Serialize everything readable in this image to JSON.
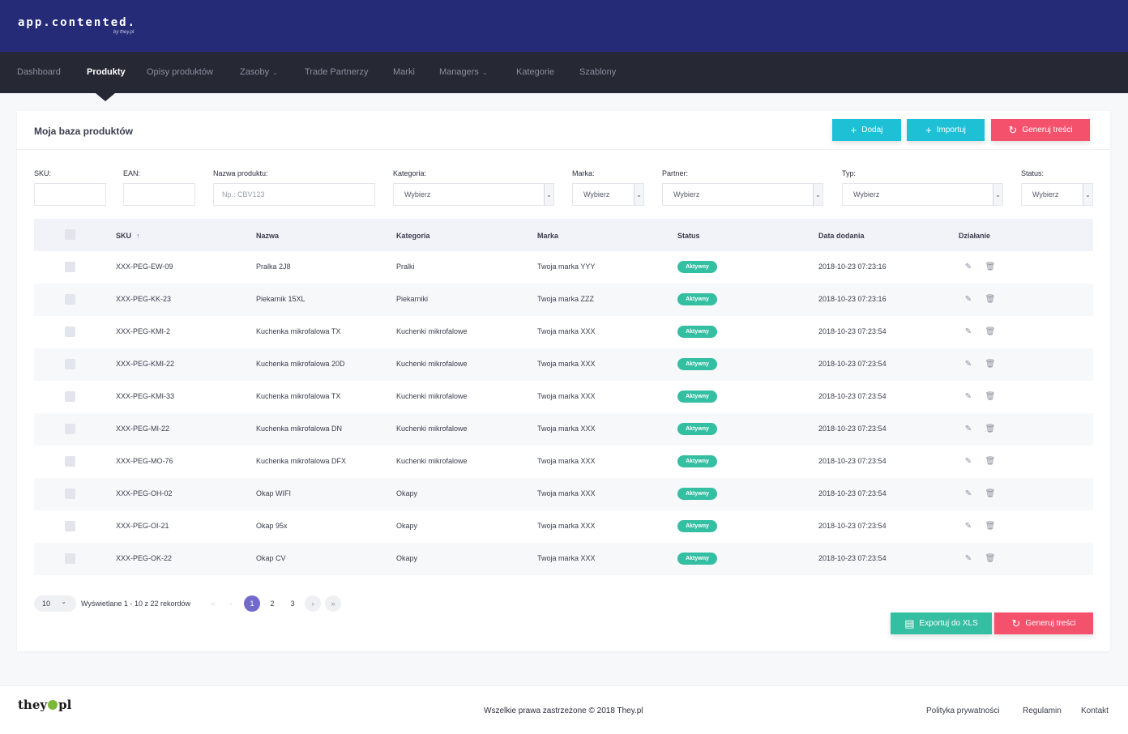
{
  "header": {
    "logo": "app.contented.",
    "logo_sub": "by they.pl"
  },
  "nav": {
    "items": [
      {
        "label": "Dashboard"
      },
      {
        "label": "Produkty",
        "active": true
      },
      {
        "label": "Opisy produktów"
      },
      {
        "label": "Zasoby",
        "dropdown": true
      },
      {
        "label": "Trade Partnerzy"
      },
      {
        "label": "Marki"
      },
      {
        "label": "Managers",
        "dropdown": true
      },
      {
        "label": "Kategorie"
      },
      {
        "label": "Szablony"
      }
    ]
  },
  "card": {
    "title": "Moja baza produktów",
    "buttons": {
      "add": "Dodaj",
      "import": "Importuj",
      "generate": "Generuj treści"
    }
  },
  "filters": {
    "sku_label": "SKU:",
    "ean_label": "EAN:",
    "name_label": "Nazwa produktu:",
    "name_placeholder": "Np.: CBV123",
    "category_label": "Kategoria:",
    "category_value": "Wybierz",
    "brand_label": "Marka:",
    "brand_value": "Wybierz",
    "partner_label": "Partner:",
    "partner_value": "Wybierz",
    "type_label": "Typ:",
    "type_value": "Wybierz",
    "status_label": "Status:",
    "status_value": "Wybierz"
  },
  "table": {
    "columns": {
      "sku": "SKU",
      "name": "Nazwa",
      "category": "Kategoria",
      "brand": "Marka",
      "status": "Status",
      "date": "Data dodania",
      "action": "Działanie"
    },
    "rows": [
      {
        "sku": "XXX-PEG-EW-09",
        "name": "Pralka 2J8",
        "category": "Pralki",
        "brand": "Twoja marka YYY",
        "status": "Aktywny",
        "date": "2018-10-23 07:23:16"
      },
      {
        "sku": "XXX-PEG-KK-23",
        "name": "Piekarnik 15XL",
        "category": "Piekarniki",
        "brand": "Twoja marka ZZZ",
        "status": "Aktywny",
        "date": "2018-10-23 07:23:16"
      },
      {
        "sku": "XXX-PEG-KMI-2",
        "name": "Kuchenka mikrofalowa TX",
        "category": "Kuchenki mikrofalowe",
        "brand": "Twoja marka XXX",
        "status": "Aktywny",
        "date": "2018-10-23 07:23:54"
      },
      {
        "sku": "XXX-PEG-KMI-22",
        "name": "Kuchenka mikrofalowa 20D",
        "category": "Kuchenki mikrofalowe",
        "brand": "Twoja marka XXX",
        "status": "Aktywny",
        "date": "2018-10-23 07:23:54"
      },
      {
        "sku": "XXX-PEG-KMI-33",
        "name": "Kuchenka mikrofalowa TX",
        "category": "Kuchenki mikrofalowe",
        "brand": "Twoja marka XXX",
        "status": "Aktywny",
        "date": "2018-10-23 07:23:54"
      },
      {
        "sku": "XXX-PEG-MI-22",
        "name": "Kuchenka mikrofalowa DN",
        "category": "Kuchenki mikrofalowe",
        "brand": "Twoja marka XXX",
        "status": "Aktywny",
        "date": "2018-10-23 07:23:54"
      },
      {
        "sku": "XXX-PEG-MO-76",
        "name": "Kuchenka mikrofalowa DFX",
        "category": "Kuchenki mikrofalowe",
        "brand": "Twoja marka XXX",
        "status": "Aktywny",
        "date": "2018-10-23 07:23:54"
      },
      {
        "sku": "XXX-PEG-OH-02",
        "name": "Okap WIFI",
        "category": "Okapy",
        "brand": "Twoja marka XXX",
        "status": "Aktywny",
        "date": "2018-10-23 07:23:54"
      },
      {
        "sku": "XXX-PEG-OI-21",
        "name": "Okap 95x",
        "category": "Okapy",
        "brand": "Twoja marka XXX",
        "status": "Aktywny",
        "date": "2018-10-23 07:23:54"
      },
      {
        "sku": "XXX-PEG-OK-22",
        "name": "Okap CV",
        "category": "Okapy",
        "brand": "Twoja marka XXX",
        "status": "Aktywny",
        "date": "2018-10-23 07:23:54"
      }
    ]
  },
  "pagination": {
    "per_page": "10",
    "info": "Wyświetlane 1 - 10 z 22 rekordów",
    "pages": [
      "1",
      "2",
      "3"
    ],
    "current": "1"
  },
  "bottom_buttons": {
    "export": "Exportuj do XLS",
    "generate": "Generuj treści"
  },
  "footer": {
    "logo_left": "they",
    "logo_right": "pl",
    "copyright": "Wszelkie prawa zastrzeżone © 2018 They.pl",
    "links": [
      "Polityka prywatności",
      "Regulamin",
      "Kontakt"
    ]
  },
  "colors": {
    "topbar": "#262b77",
    "navbar": "#262834",
    "cyan": "#1ec0d6",
    "pink": "#f4516c",
    "green": "#34bfa3",
    "page_active": "#716aca"
  },
  "icons": {
    "add": "plus-icon",
    "import": "plus-icon",
    "generate": "refresh-icon",
    "sort": "arrow-up-icon",
    "edit": "edit-icon",
    "delete": "trash-icon",
    "export": "file-icon",
    "select": "chevron-down-icon"
  }
}
